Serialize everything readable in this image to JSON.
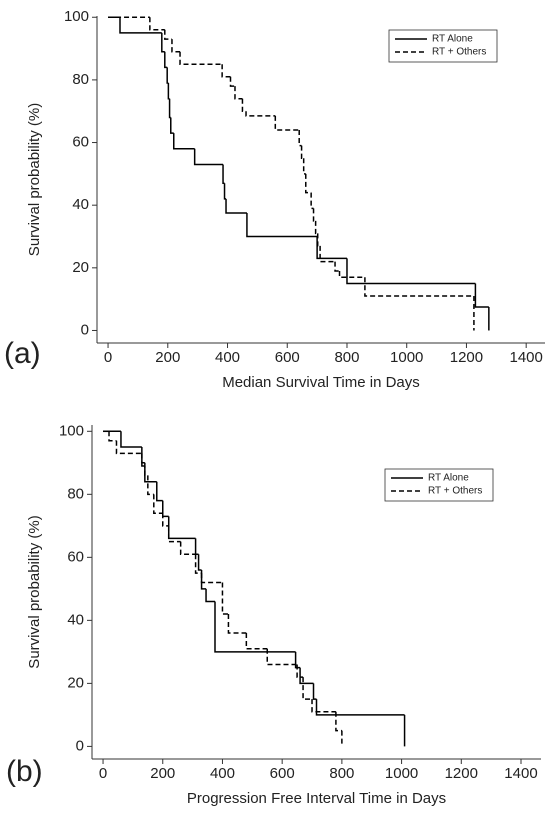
{
  "chart_data": [
    {
      "type": "step",
      "panel_label": "(a)",
      "x_label": "Median Survival Time in Days",
      "y_label": "Survival probability (%)",
      "xlim": [
        -37,
        1463
      ],
      "ylim": [
        -4,
        100.4
      ],
      "xticks": [
        0,
        200,
        400,
        600,
        800,
        1000,
        1200,
        1400
      ],
      "yticks": [
        0,
        20,
        40,
        60,
        80,
        100
      ],
      "legend": "upper right",
      "series": [
        {
          "name": "RT Alone",
          "color": "#000000",
          "linestyle": "solid",
          "x": [
            0,
            40,
            180,
            190,
            198,
            202,
            206,
            210,
            220,
            290,
            385,
            390,
            395,
            465,
            700,
            800,
            1230,
            1275
          ],
          "values": [
            100,
            95,
            89,
            84,
            79,
            74,
            68,
            63,
            58,
            53,
            47,
            42,
            37.5,
            30,
            23,
            15,
            7.5,
            0
          ]
        },
        {
          "name": "RT + Others",
          "color": "#000000",
          "linestyle": "dashed",
          "x": [
            0,
            140,
            190,
            214,
            241,
            382,
            410,
            425,
            450,
            462,
            560,
            640,
            648,
            655,
            662,
            680,
            688,
            695,
            702,
            710,
            760,
            775,
            860,
            1225
          ],
          "values": [
            100,
            96,
            93,
            89,
            85,
            81,
            78,
            74,
            70,
            68.5,
            64,
            59,
            55,
            50,
            44,
            39,
            35,
            31,
            27,
            22,
            19,
            17,
            11,
            0
          ]
        }
      ]
    },
    {
      "type": "step",
      "panel_label": "(b)",
      "x_label": "Progression Free Interval Time in Days",
      "y_label": "Survival probability (%)",
      "xlim": [
        -37,
        1467
      ],
      "ylim": [
        -4,
        102
      ],
      "xticks": [
        0,
        200,
        400,
        600,
        800,
        1000,
        1200,
        1400
      ],
      "yticks": [
        0,
        20,
        40,
        60,
        80,
        100
      ],
      "legend": "upper right",
      "series": [
        {
          "name": "RT Alone",
          "color": "#000000",
          "linestyle": "solid",
          "x": [
            0,
            60,
            130,
            140,
            180,
            200,
            220,
            310,
            320,
            330,
            345,
            375,
            645,
            660,
            705,
            715,
            1010
          ],
          "values": [
            100,
            95,
            89,
            84,
            78,
            73,
            66,
            61,
            56,
            50,
            46,
            30,
            25,
            20,
            15,
            10,
            0
          ]
        },
        {
          "name": "RT + Others",
          "color": "#000000",
          "linestyle": "dashed",
          "x": [
            0,
            20,
            45,
            130,
            140,
            150,
            170,
            200,
            220,
            260,
            310,
            330,
            400,
            420,
            480,
            550,
            650,
            670,
            700,
            780,
            800
          ],
          "values": [
            100,
            97,
            93,
            90,
            86,
            80,
            74,
            70,
            65,
            61,
            55,
            52,
            42,
            36,
            31,
            26,
            22,
            15,
            11,
            5,
            0
          ]
        }
      ]
    }
  ]
}
